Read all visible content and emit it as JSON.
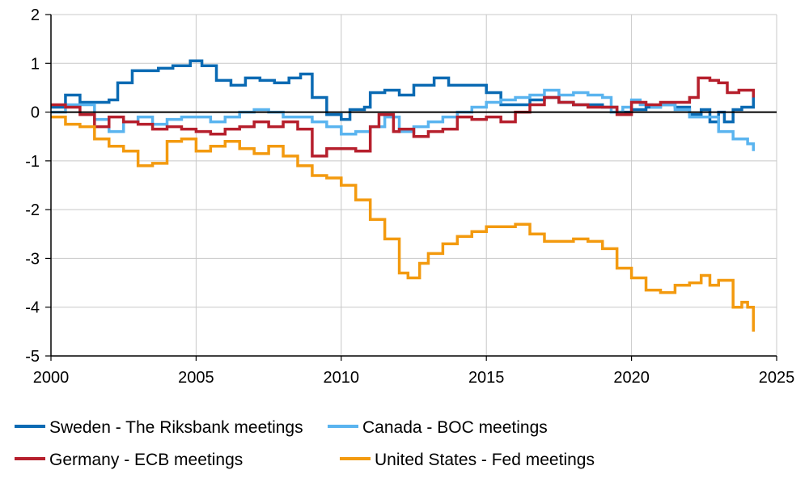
{
  "chart_data": {
    "type": "line",
    "title": "",
    "xlabel": "",
    "ylabel": "",
    "xlim": [
      2000,
      2025
    ],
    "ylim": [
      -5,
      2
    ],
    "xticks": [
      "2000",
      "2005",
      "2010",
      "2015",
      "2020",
      "2025"
    ],
    "yticks": [
      "2",
      "1",
      "0",
      "-1",
      "-2",
      "-3",
      "-4",
      "-5"
    ],
    "grid": true,
    "legend_position": "bottom",
    "series": [
      {
        "name": "Sweden - The Riksbank meetings",
        "color": "#0a6ab3",
        "x": [
          2000,
          2000.5,
          2001,
          2001.5,
          2002,
          2002.3,
          2002.8,
          2003.2,
          2003.7,
          2004.2,
          2004.8,
          2005.2,
          2005.7,
          2006.2,
          2006.7,
          2007.2,
          2007.7,
          2008.2,
          2008.6,
          2009,
          2009.5,
          2010,
          2010.3,
          2010.8,
          2011,
          2011.5,
          2012,
          2012.5,
          2013.2,
          2013.7,
          2014.5,
          2015,
          2015.5,
          2016,
          2016.5,
          2017,
          2017.5,
          2018,
          2018.5,
          2019,
          2019.5,
          2020,
          2020.5,
          2021,
          2021.5,
          2022,
          2022.4,
          2022.7,
          2023,
          2023.2,
          2023.5,
          2023.8,
          2024.2
        ],
        "y": [
          0.1,
          0.35,
          0.2,
          0.2,
          0.25,
          0.6,
          0.85,
          0.85,
          0.9,
          0.95,
          1.05,
          0.95,
          0.65,
          0.55,
          0.7,
          0.65,
          0.6,
          0.7,
          0.78,
          0.3,
          -0.05,
          -0.15,
          0.05,
          0.1,
          0.4,
          0.45,
          0.35,
          0.55,
          0.7,
          0.55,
          0.55,
          0.4,
          0.15,
          0.15,
          0.25,
          0.3,
          0.2,
          0.15,
          0.15,
          0.1,
          0,
          0.05,
          0.1,
          0.15,
          0.1,
          -0.05,
          0.05,
          -0.2,
          0,
          -0.2,
          0.05,
          0.1,
          0.3
        ]
      },
      {
        "name": "Canada - BOC meetings",
        "color": "#5ab4ef",
        "x": [
          2000,
          2000.5,
          2001,
          2001.5,
          2002,
          2002.5,
          2003,
          2003.5,
          2004,
          2004.5,
          2005,
          2005.5,
          2006,
          2006.5,
          2007,
          2007.5,
          2008,
          2008.5,
          2009,
          2009.5,
          2010,
          2010.5,
          2011,
          2011.5,
          2012,
          2012.5,
          2013,
          2013.5,
          2014,
          2014.5,
          2015,
          2015.5,
          2016,
          2016.5,
          2017,
          2017.5,
          2018,
          2018.5,
          2019,
          2019.3,
          2019.7,
          2020,
          2020.3,
          2020.7,
          2021,
          2021.5,
          2022,
          2022.5,
          2023,
          2023.5,
          2024,
          2024.2
        ],
        "y": [
          0,
          0.15,
          0.15,
          -0.15,
          -0.4,
          -0.2,
          -0.1,
          -0.25,
          -0.15,
          -0.1,
          -0.1,
          -0.2,
          -0.1,
          0,
          0.05,
          0,
          -0.1,
          -0.1,
          -0.2,
          -0.3,
          -0.45,
          -0.4,
          -0.3,
          -0.1,
          -0.4,
          -0.3,
          -0.2,
          -0.1,
          0,
          0.1,
          0.2,
          0.25,
          0.3,
          0.35,
          0.45,
          0.35,
          0.4,
          0.35,
          0.3,
          0,
          0.1,
          0.25,
          0.15,
          0.1,
          0.15,
          0.05,
          -0.1,
          -0.1,
          -0.4,
          -0.55,
          -0.65,
          -0.8
        ]
      },
      {
        "name": "Germany - ECB meetings",
        "color": "#b61f2c",
        "x": [
          2000,
          2000.5,
          2001,
          2001.5,
          2002,
          2002.5,
          2003,
          2003.5,
          2004,
          2004.5,
          2005,
          2005.5,
          2006,
          2006.5,
          2007,
          2007.5,
          2008,
          2008.5,
          2009,
          2009.5,
          2010,
          2010.5,
          2011,
          2011.3,
          2011.8,
          2012,
          2012.5,
          2013,
          2013.5,
          2014,
          2014.5,
          2015,
          2015.5,
          2016,
          2016.5,
          2017,
          2017.5,
          2018,
          2018.5,
          2019,
          2019.5,
          2020,
          2020.5,
          2021,
          2021.5,
          2022,
          2022.3,
          2022.7,
          2023,
          2023.3,
          2023.7,
          2024.2
        ],
        "y": [
          0.15,
          0.1,
          -0.05,
          -0.3,
          -0.1,
          -0.2,
          -0.25,
          -0.35,
          -0.3,
          -0.35,
          -0.4,
          -0.45,
          -0.35,
          -0.3,
          -0.2,
          -0.3,
          -0.2,
          -0.35,
          -0.9,
          -0.75,
          -0.75,
          -0.8,
          -0.3,
          -0.05,
          -0.4,
          -0.35,
          -0.5,
          -0.4,
          -0.35,
          -0.1,
          -0.15,
          -0.1,
          -0.2,
          0,
          0.15,
          0.3,
          0.2,
          0.15,
          0.1,
          0.1,
          -0.05,
          0.2,
          0.15,
          0.2,
          0.2,
          0.3,
          0.7,
          0.65,
          0.6,
          0.4,
          0.45,
          0.3
        ]
      },
      {
        "name": "United States - Fed meetings",
        "color": "#f39a0f",
        "x": [
          2000,
          2000.5,
          2001,
          2001.5,
          2002,
          2002.5,
          2003,
          2003.5,
          2004,
          2004.5,
          2005,
          2005.5,
          2006,
          2006.5,
          2007,
          2007.5,
          2008,
          2008.5,
          2009,
          2009.5,
          2010,
          2010.5,
          2011,
          2011.5,
          2012,
          2012.3,
          2012.7,
          2013,
          2013.5,
          2014,
          2014.5,
          2015,
          2015.5,
          2016,
          2016.5,
          2017,
          2017.5,
          2018,
          2018.5,
          2019,
          2019.5,
          2020,
          2020.5,
          2021,
          2021.5,
          2022,
          2022.4,
          2022.7,
          2023,
          2023.5,
          2023.8,
          2024,
          2024.2
        ],
        "y": [
          -0.1,
          -0.25,
          -0.3,
          -0.55,
          -0.7,
          -0.8,
          -1.1,
          -1.05,
          -0.6,
          -0.55,
          -0.8,
          -0.7,
          -0.6,
          -0.75,
          -0.85,
          -0.7,
          -0.9,
          -1.1,
          -1.3,
          -1.35,
          -1.5,
          -1.8,
          -2.2,
          -2.6,
          -3.3,
          -3.4,
          -3.1,
          -2.9,
          -2.7,
          -2.55,
          -2.45,
          -2.35,
          -2.35,
          -2.3,
          -2.5,
          -2.65,
          -2.65,
          -2.6,
          -2.65,
          -2.8,
          -3.2,
          -3.4,
          -3.65,
          -3.7,
          -3.55,
          -3.5,
          -3.35,
          -3.55,
          -3.45,
          -4.0,
          -3.9,
          -4.0,
          -4.5
        ]
      }
    ]
  }
}
